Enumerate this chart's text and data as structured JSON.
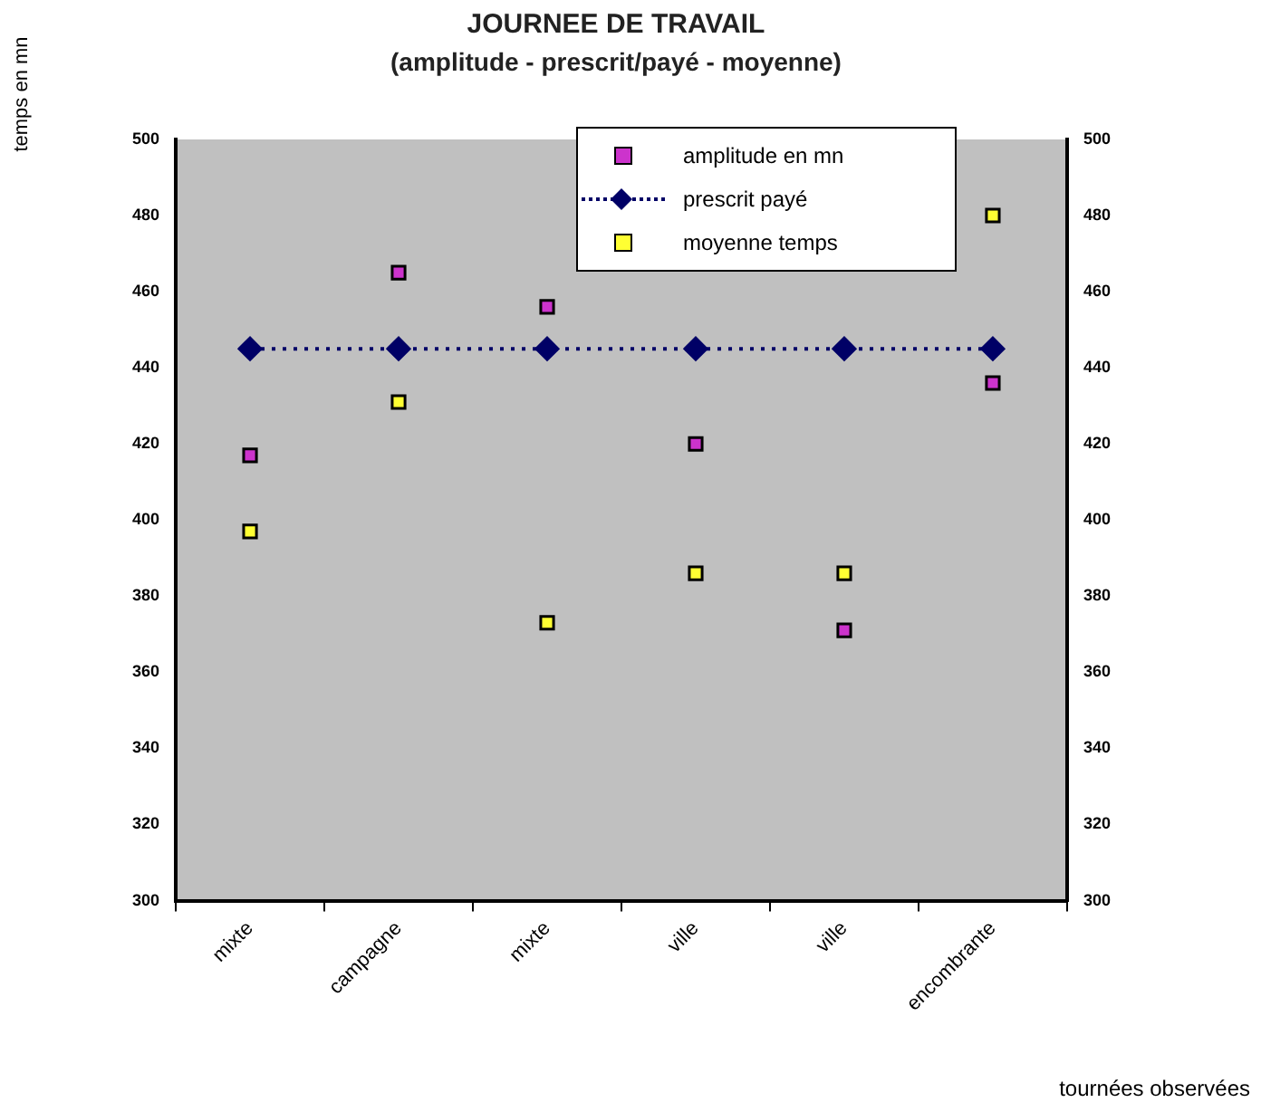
{
  "chart_data": {
    "type": "line",
    "title": "JOURNEE DE TRAVAIL",
    "subtitle": "(amplitude - prescrit/payé - moyenne)",
    "xlabel": "tournées observées",
    "ylabel": "temps en mn",
    "categories": [
      "mixte",
      "campagne",
      "mixte",
      "ville",
      "ville",
      "encombrante"
    ],
    "series": [
      {
        "name": "amplitude en mn",
        "type": "scatter",
        "marker": "square",
        "color": "#cc33cc",
        "values": [
          417,
          465,
          456,
          420,
          371,
          436
        ]
      },
      {
        "name": "prescrit payé",
        "type": "line",
        "marker": "diamond",
        "line_style": "dotted",
        "color": "#000066",
        "values": [
          445,
          445,
          445,
          445,
          445,
          445
        ]
      },
      {
        "name": "moyenne temps",
        "type": "scatter",
        "marker": "square",
        "color": "#ffff33",
        "values": [
          397,
          431,
          373,
          386,
          386,
          480
        ]
      }
    ],
    "ylim": [
      300,
      500
    ],
    "yticks": [
      300,
      320,
      340,
      360,
      380,
      400,
      420,
      440,
      460,
      480,
      500
    ],
    "y2lim": [
      300,
      500
    ],
    "y2ticks": [
      300,
      320,
      340,
      360,
      380,
      400,
      420,
      440,
      460,
      480,
      500
    ],
    "grid": false,
    "legend": "top right"
  }
}
